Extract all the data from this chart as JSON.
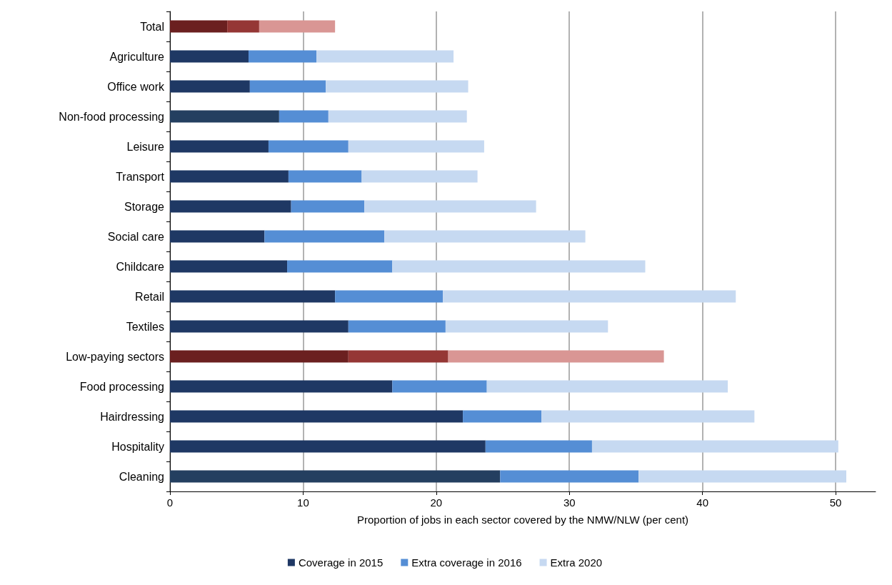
{
  "chart_data": {
    "type": "bar",
    "orientation": "horizontal",
    "stacked": true,
    "xlabel": "Proportion of jobs in each sector covered by the NMW/NLW (per cent)",
    "categories": [
      "Total",
      "Agriculture",
      "Office work",
      "Non-food processing",
      "Leisure",
      "Transport",
      "Storage",
      "Social care",
      "Childcare",
      "Retail",
      "Textiles",
      "Low-paying sectors",
      "Food processing",
      "Hairdressing",
      "Hospitality",
      "Cleaning"
    ],
    "series": [
      {
        "name": "Coverage in 2015",
        "color": "#1f3864",
        "colors": [
          "#6b2020",
          "#1f3864",
          "#1f3864",
          "#243f60",
          "#1f3864",
          "#1f3864",
          "#1f3864",
          "#1f3864",
          "#1f3864",
          "#1f3864",
          "#1f3864",
          "#6b2020",
          "#1f3864",
          "#1f3864",
          "#1f3864",
          "#243f60"
        ],
        "values": [
          4.3,
          5.9,
          6.0,
          8.2,
          7.4,
          8.9,
          9.1,
          7.1,
          8.8,
          12.4,
          13.4,
          13.4,
          16.7,
          22.0,
          23.7,
          24.8
        ]
      },
      {
        "name": "Extra coverage in 2016",
        "color": "#558ed5",
        "colors": [
          "#953735",
          "#558ed5",
          "#558ed5",
          "#558ed5",
          "#558ed5",
          "#558ed5",
          "#558ed5",
          "#558ed5",
          "#558ed5",
          "#558ed5",
          "#558ed5",
          "#953735",
          "#558ed5",
          "#558ed5",
          "#558ed5",
          "#558ed5"
        ],
        "values": [
          2.4,
          5.1,
          5.7,
          3.7,
          6.0,
          5.5,
          5.5,
          9.0,
          7.9,
          8.1,
          7.3,
          7.5,
          7.1,
          5.9,
          8.0,
          10.4
        ]
      },
      {
        "name": "Extra 2020",
        "color": "#c6d9f1",
        "colors": [
          "#d99694",
          "#c6d9f1",
          "#c6d9f1",
          "#c6d9f1",
          "#c6d9f1",
          "#c6d9f1",
          "#c6d9f1",
          "#c6d9f1",
          "#c6d9f1",
          "#c6d9f1",
          "#c6d9f1",
          "#d99694",
          "#c6d9f1",
          "#c6d9f1",
          "#c6d9f1",
          "#c6d9f1"
        ],
        "values": [
          5.7,
          10.3,
          10.7,
          10.4,
          10.2,
          8.7,
          12.9,
          15.1,
          19.0,
          22.0,
          12.2,
          16.2,
          18.1,
          16.0,
          18.5,
          15.6
        ]
      }
    ],
    "xlim": [
      0,
      53
    ],
    "xticks": [
      0,
      10,
      20,
      30,
      40,
      50
    ],
    "grid": "x",
    "legend": "bottom"
  }
}
